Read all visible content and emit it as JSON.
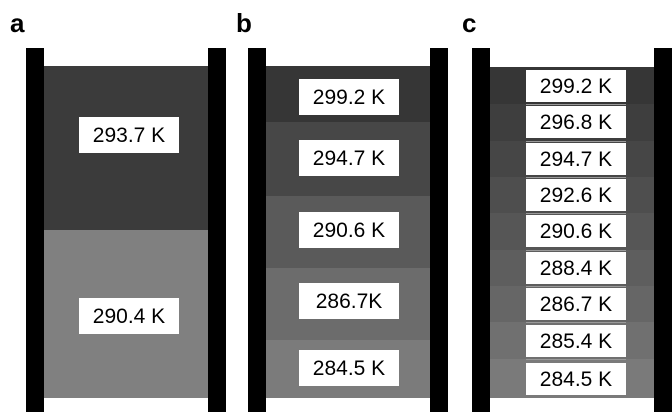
{
  "panels": {
    "a": {
      "label": "a",
      "layers": [
        {
          "temperature": "293.7 K",
          "color": "#3b3b3b"
        },
        {
          "temperature": "290.4 K",
          "color": "#808080"
        }
      ]
    },
    "b": {
      "label": "b",
      "layers": [
        {
          "temperature": "299.2 K",
          "color": "#363636"
        },
        {
          "temperature": "294.7 K",
          "color": "#474747"
        },
        {
          "temperature": "290.6 K",
          "color": "#5a5a5a"
        },
        {
          "temperature": "286.7K",
          "color": "#6c6c6c"
        },
        {
          "temperature": "284.5 K",
          "color": "#7b7b7b"
        }
      ]
    },
    "c": {
      "label": "c",
      "layers": [
        {
          "temperature": "299.2 K",
          "color": "#363636"
        },
        {
          "temperature": "296.8 K",
          "color": "#3e3e3e"
        },
        {
          "temperature": "294.7 K",
          "color": "#464646"
        },
        {
          "temperature": "292.6 K",
          "color": "#4e4e4e"
        },
        {
          "temperature": "290.6 K",
          "color": "#565656"
        },
        {
          "temperature": "288.4 K",
          "color": "#5e5e5e"
        },
        {
          "temperature": "286.7 K",
          "color": "#666666"
        },
        {
          "temperature": "285.4 K",
          "color": "#707070"
        },
        {
          "temperature": "284.5 K",
          "color": "#7a7a7a"
        }
      ]
    }
  }
}
